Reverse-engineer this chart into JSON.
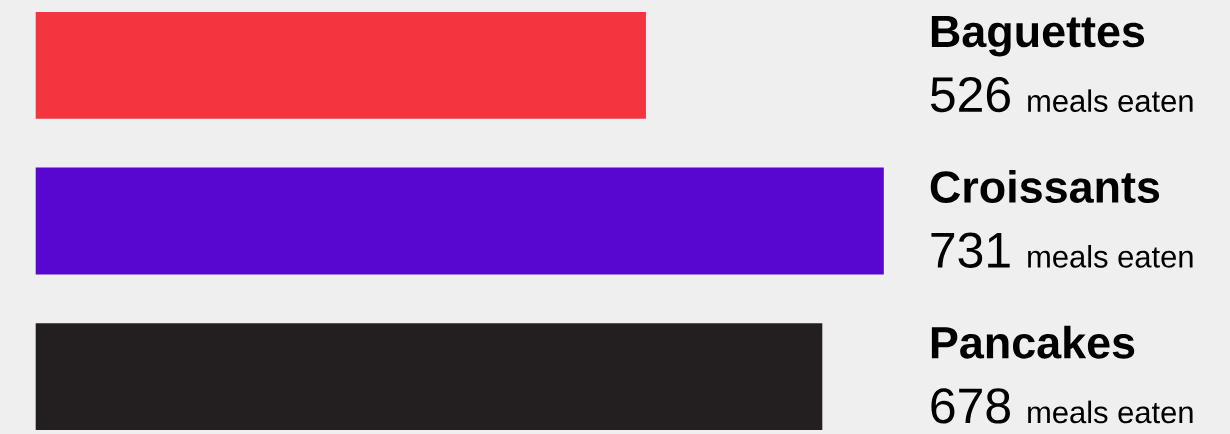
{
  "chart_data": {
    "type": "bar",
    "orientation": "horizontal",
    "categories": [
      "Baguettes",
      "Croissants",
      "Pancakes"
    ],
    "values": [
      526,
      731,
      678
    ],
    "colors": [
      "#f43540",
      "#5807d1",
      "#231f20"
    ],
    "data_labels": true,
    "annotations": [
      "meals eaten",
      "meals eaten",
      "meals eaten"
    ]
  }
}
